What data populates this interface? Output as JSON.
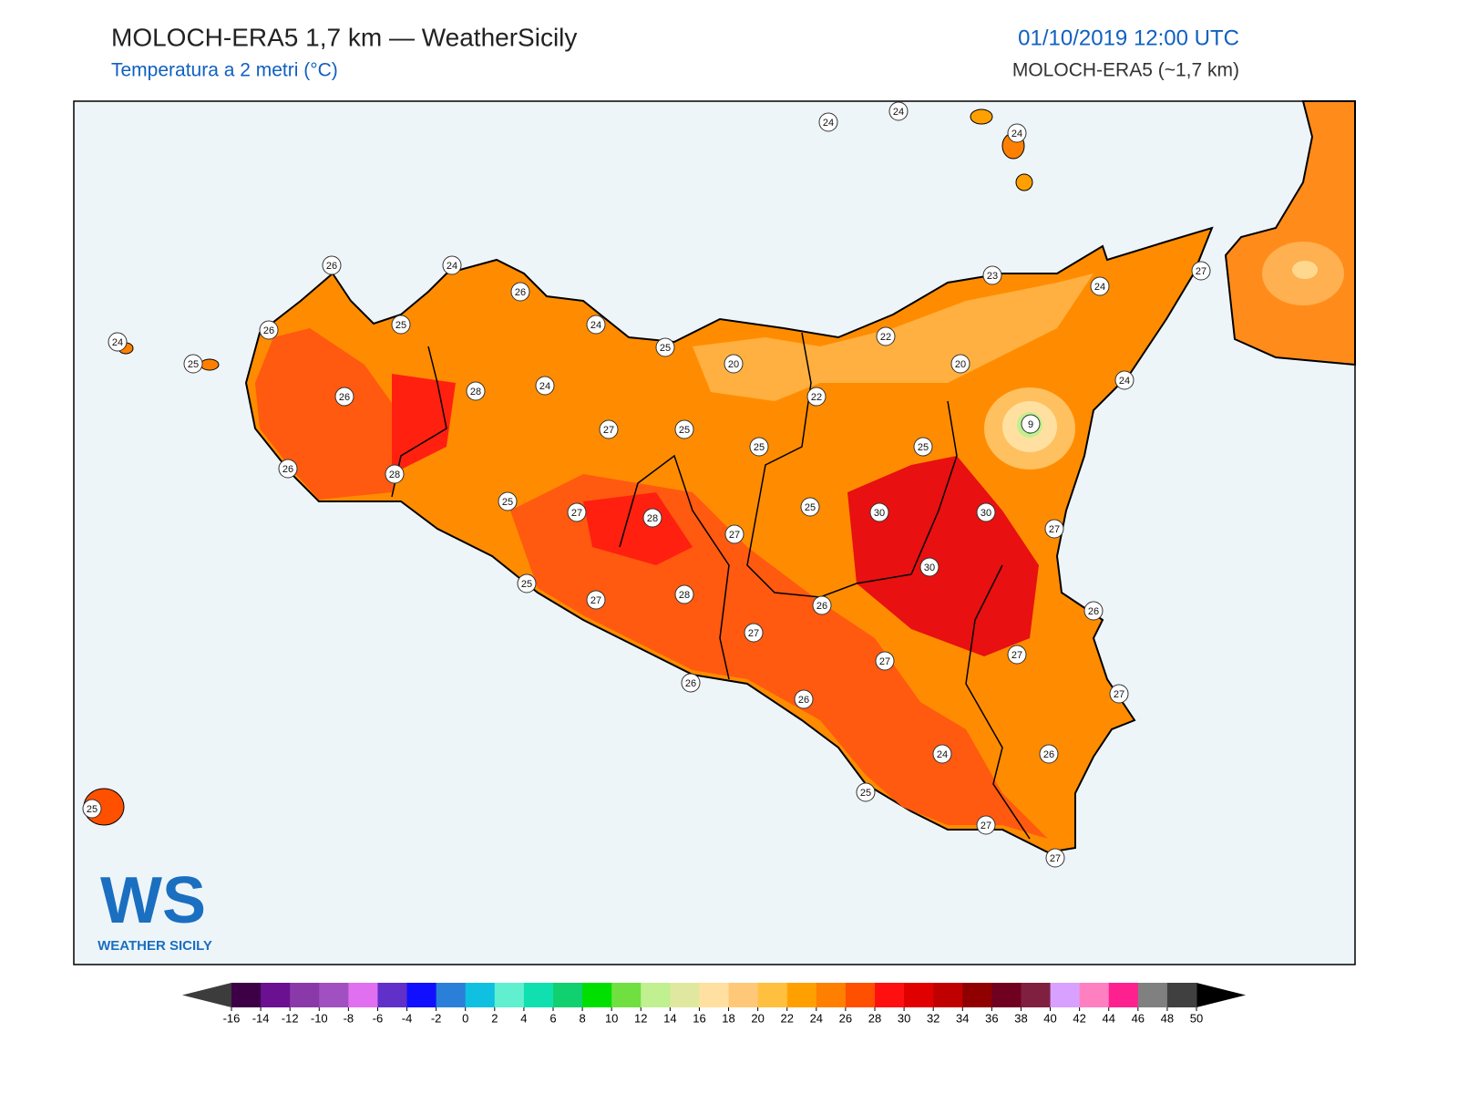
{
  "header": {
    "title": "MOLOCH-ERA5 1,7 km — WeatherSicily",
    "subtitle": "Temperatura a 2 metri (°C)",
    "date": "01/10/2019 12:00 UTC",
    "model": "MOLOCH-ERA5 (~1,7 km)"
  },
  "stations": [
    26,
    24,
    26,
    26,
    25,
    24,
    25,
    24,
    25,
    26,
    28,
    24,
    20,
    24,
    24,
    24,
    23,
    24,
    27,
    22,
    20,
    24,
    22,
    9,
    27,
    25,
    25,
    25,
    26,
    28,
    25,
    27,
    28,
    27,
    25,
    30,
    30,
    27,
    30,
    25,
    27,
    28,
    26,
    26,
    27,
    27,
    27,
    27,
    26,
    26,
    24,
    26,
    25,
    25,
    27,
    27
  ],
  "logo": {
    "mark": "WS",
    "text": "WEATHER SICILY"
  },
  "colorbar": {
    "ticks": [
      -16,
      -14,
      -12,
      -10,
      -8,
      -6,
      -4,
      -2,
      0,
      2,
      4,
      6,
      8,
      10,
      12,
      14,
      16,
      18,
      20,
      22,
      24,
      26,
      28,
      30,
      32,
      34,
      36,
      38,
      40,
      42,
      44,
      46,
      48,
      50
    ],
    "colors": [
      "#3d0046",
      "#6a1090",
      "#8a3aa8",
      "#a050c0",
      "#e070f0",
      "#6030c8",
      "#1010ff",
      "#2a80d8",
      "#10c0e0",
      "#60f0d0",
      "#10e0b0",
      "#10d070",
      "#00e000",
      "#70e040",
      "#c0f090",
      "#e0e8a0",
      "#ffe0a0",
      "#ffc878",
      "#ffc040",
      "#ffa000",
      "#ff8000",
      "#ff5000",
      "#ff1010",
      "#e00000",
      "#c00000",
      "#900000",
      "#700020",
      "#802040",
      "#d8a0ff",
      "#ff80c0",
      "#ff2090",
      "#808080",
      "#404040"
    ],
    "under": "#3c3c3c",
    "over": "#000000"
  }
}
